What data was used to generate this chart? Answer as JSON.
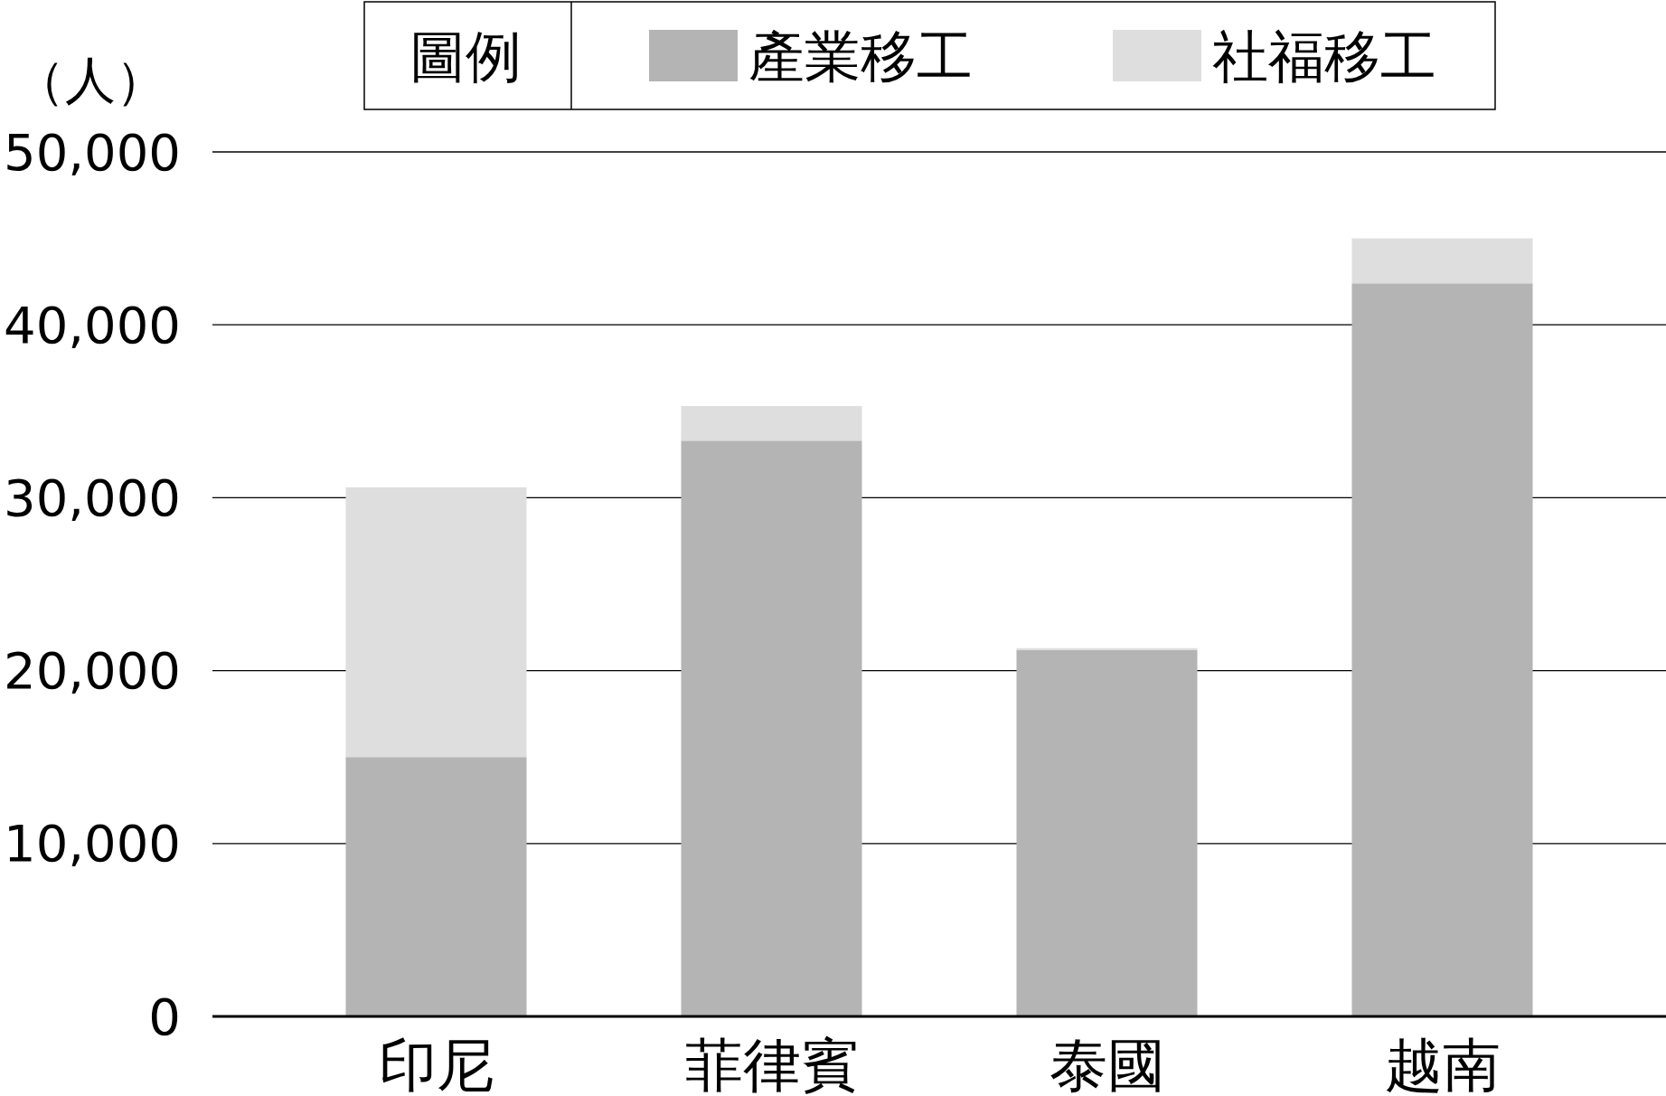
{
  "chart_data": {
    "type": "bar",
    "stacked": true,
    "categories": [
      "印尼",
      "菲律賓",
      "泰國",
      "越南"
    ],
    "series": [
      {
        "name": "產業移工",
        "color": "#b4b4b4",
        "values": [
          15000,
          33300,
          21200,
          42400
        ]
      },
      {
        "name": "社福移工",
        "color": "#dedede",
        "values": [
          15600,
          2000,
          100,
          2600
        ]
      }
    ],
    "ylabel": "（人）",
    "legend_title": "圖例",
    "legend": "top",
    "grid": "y",
    "ylim": [
      0,
      50000
    ],
    "yticks": [
      {
        "value": 0,
        "label": "0"
      },
      {
        "value": 10000,
        "label": "10,000"
      },
      {
        "value": 20000,
        "label": "20,000"
      },
      {
        "value": 30000,
        "label": "30,000"
      },
      {
        "value": 40000,
        "label": "40,000"
      },
      {
        "value": 50000,
        "label": "50,000"
      }
    ]
  }
}
